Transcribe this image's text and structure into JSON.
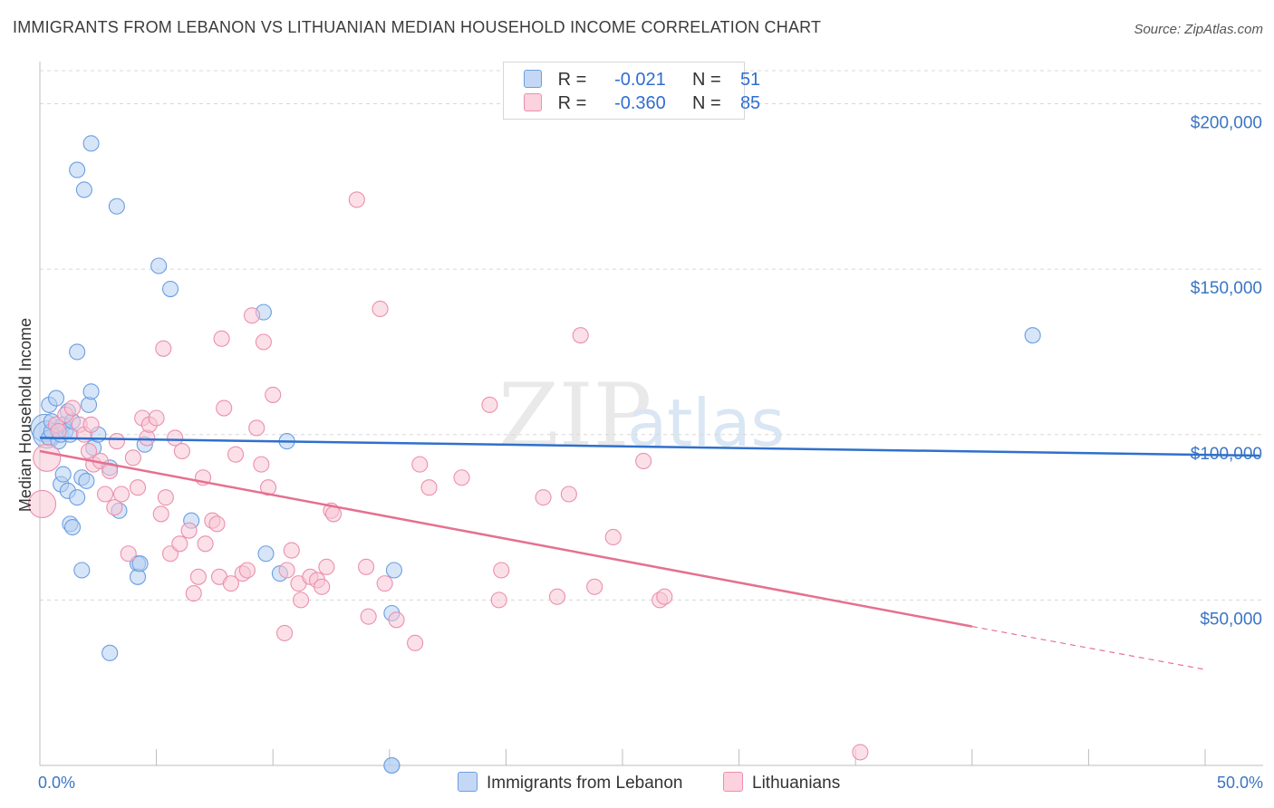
{
  "title": "IMMIGRANTS FROM LEBANON VS LITHUANIAN MEDIAN HOUSEHOLD INCOME CORRELATION CHART",
  "source": "Source: ZipAtlas.com",
  "watermark": {
    "zip": "ZIP",
    "atlas": "atlas"
  },
  "legend_stats": [
    {
      "r_label": "R =",
      "r": "-0.021",
      "n_label": "N =",
      "n": "51",
      "color": "#a9c8f0"
    },
    {
      "r_label": "R =",
      "r": "-0.360",
      "n_label": "N =",
      "n": "85",
      "color": "#f7bcd0"
    }
  ],
  "chart_data": {
    "type": "scatter",
    "title": "IMMIGRANTS FROM LEBANON VS LITHUANIAN MEDIAN HOUSEHOLD INCOME CORRELATION CHART",
    "xlabel": "",
    "ylabel": "Median Household Income",
    "xlim": [
      0,
      50
    ],
    "ylim": [
      0,
      210000
    ],
    "x_tick_labels": [
      "0.0%",
      "50.0%"
    ],
    "y_ticks": [
      50000,
      100000,
      150000,
      200000
    ],
    "y_tick_labels": [
      "$50,000",
      "$100,000",
      "$150,000",
      "$200,000"
    ],
    "grid": true,
    "series": [
      {
        "name": "Immigrants from Lebanon",
        "color": "#6a9fe0",
        "fill": "#b7d0f3",
        "points": [
          [
            0.2,
            102000
          ],
          [
            0.3,
            100000
          ],
          [
            0.4,
            99000
          ],
          [
            0.5,
            101000
          ],
          [
            0.4,
            109000
          ],
          [
            0.5,
            104000
          ],
          [
            0.7,
            111000
          ],
          [
            0.8,
            98000
          ],
          [
            0.9,
            100000
          ],
          [
            1.0,
            103000
          ],
          [
            1.1,
            101000
          ],
          [
            1.2,
            107000
          ],
          [
            1.3,
            100000
          ],
          [
            1.4,
            104000
          ],
          [
            0.9,
            85000
          ],
          [
            1.0,
            88000
          ],
          [
            1.2,
            83000
          ],
          [
            1.3,
            73000
          ],
          [
            1.4,
            72000
          ],
          [
            1.6,
            81000
          ],
          [
            1.8,
            87000
          ],
          [
            2.0,
            86000
          ],
          [
            2.1,
            109000
          ],
          [
            2.2,
            113000
          ],
          [
            2.3,
            96000
          ],
          [
            2.5,
            100000
          ],
          [
            1.6,
            125000
          ],
          [
            1.6,
            180000
          ],
          [
            1.9,
            174000
          ],
          [
            2.2,
            188000
          ],
          [
            3.3,
            169000
          ],
          [
            3.4,
            77000
          ],
          [
            3.0,
            90000
          ],
          [
            4.2,
            61000
          ],
          [
            4.2,
            57000
          ],
          [
            4.3,
            61000
          ],
          [
            4.5,
            97000
          ],
          [
            5.1,
            151000
          ],
          [
            5.6,
            144000
          ],
          [
            6.5,
            74000
          ],
          [
            9.6,
            137000
          ],
          [
            9.7,
            64000
          ],
          [
            10.3,
            58000
          ],
          [
            10.6,
            98000
          ],
          [
            15.1,
            46000
          ],
          [
            15.1,
            0
          ],
          [
            15.1,
            0
          ],
          [
            15.2,
            59000
          ],
          [
            1.8,
            59000
          ],
          [
            3.0,
            34000
          ],
          [
            42.6,
            130000
          ]
        ]
      },
      {
        "name": "Lithuanians",
        "color": "#ec8fae",
        "fill": "#f8c6d6",
        "points": [
          [
            0.1,
            79000
          ],
          [
            0.3,
            93000
          ],
          [
            0.7,
            103000
          ],
          [
            0.8,
            101000
          ],
          [
            1.1,
            106000
          ],
          [
            1.4,
            108000
          ],
          [
            1.7,
            103000
          ],
          [
            1.9,
            100000
          ],
          [
            2.1,
            95000
          ],
          [
            2.2,
            103000
          ],
          [
            2.3,
            91000
          ],
          [
            2.6,
            92000
          ],
          [
            2.8,
            82000
          ],
          [
            3.0,
            89000
          ],
          [
            3.2,
            78000
          ],
          [
            3.3,
            98000
          ],
          [
            3.5,
            82000
          ],
          [
            3.8,
            64000
          ],
          [
            4.0,
            93000
          ],
          [
            4.2,
            84000
          ],
          [
            4.4,
            105000
          ],
          [
            4.6,
            99000
          ],
          [
            4.7,
            103000
          ],
          [
            5.0,
            105000
          ],
          [
            5.2,
            76000
          ],
          [
            5.3,
            126000
          ],
          [
            5.4,
            81000
          ],
          [
            5.6,
            64000
          ],
          [
            5.8,
            99000
          ],
          [
            6.0,
            67000
          ],
          [
            6.1,
            95000
          ],
          [
            6.4,
            71000
          ],
          [
            6.6,
            52000
          ],
          [
            6.8,
            57000
          ],
          [
            7.0,
            87000
          ],
          [
            7.1,
            67000
          ],
          [
            7.4,
            74000
          ],
          [
            7.6,
            73000
          ],
          [
            7.7,
            57000
          ],
          [
            7.8,
            129000
          ],
          [
            7.9,
            108000
          ],
          [
            8.2,
            55000
          ],
          [
            8.4,
            94000
          ],
          [
            8.7,
            58000
          ],
          [
            8.9,
            59000
          ],
          [
            9.1,
            136000
          ],
          [
            9.3,
            102000
          ],
          [
            9.5,
            91000
          ],
          [
            9.6,
            128000
          ],
          [
            9.8,
            84000
          ],
          [
            10.0,
            112000
          ],
          [
            10.6,
            59000
          ],
          [
            10.8,
            65000
          ],
          [
            11.1,
            55000
          ],
          [
            11.2,
            50000
          ],
          [
            11.6,
            57000
          ],
          [
            11.9,
            56000
          ],
          [
            12.1,
            54000
          ],
          [
            12.3,
            60000
          ],
          [
            12.5,
            77000
          ],
          [
            12.6,
            76000
          ],
          [
            13.6,
            171000
          ],
          [
            14.0,
            60000
          ],
          [
            14.1,
            45000
          ],
          [
            14.6,
            138000
          ],
          [
            14.8,
            55000
          ],
          [
            15.3,
            44000
          ],
          [
            16.1,
            37000
          ],
          [
            16.3,
            91000
          ],
          [
            16.7,
            84000
          ],
          [
            18.1,
            87000
          ],
          [
            19.3,
            109000
          ],
          [
            19.7,
            50000
          ],
          [
            19.8,
            59000
          ],
          [
            21.6,
            81000
          ],
          [
            22.2,
            51000
          ],
          [
            22.7,
            82000
          ],
          [
            23.2,
            130000
          ],
          [
            23.8,
            54000
          ],
          [
            24.6,
            69000
          ],
          [
            25.9,
            92000
          ],
          [
            26.6,
            50000
          ],
          [
            26.8,
            51000
          ],
          [
            35.2,
            4000
          ],
          [
            10.5,
            40000
          ]
        ]
      }
    ],
    "trend_lines": [
      {
        "series": "Immigrants from Lebanon",
        "x": [
          0,
          50
        ],
        "y": [
          99000,
          93500
        ]
      },
      {
        "series": "Lithuanians",
        "x": [
          0,
          40
        ],
        "y": [
          95000,
          42000
        ],
        "dashed_extension": {
          "x": [
            40,
            50
          ],
          "y": [
            42000,
            29000
          ]
        }
      }
    ]
  }
}
